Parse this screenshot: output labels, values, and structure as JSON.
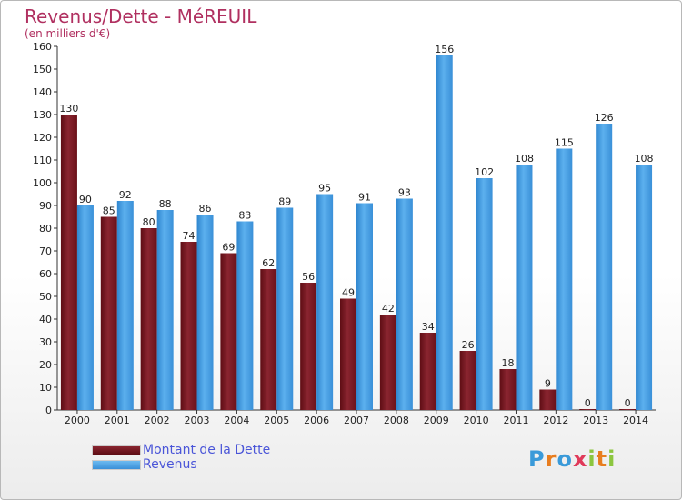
{
  "header": {
    "title": "Revenus/Dette - MéREUIL",
    "subtitle": "(en milliers d'€)"
  },
  "colors": {
    "debt": "#7a1a22",
    "revenue": "#4fa3e6",
    "title": "#b03060",
    "legend_text": "#4a55d8"
  },
  "legend": {
    "items": [
      {
        "label": "Montant de la Dette",
        "color": "#7a1a22"
      },
      {
        "label": "Revenus",
        "color": "#4fa3e6"
      }
    ]
  },
  "logo": {
    "letters": [
      "P",
      "r",
      "o",
      "x",
      "i",
      "t",
      "i"
    ],
    "colors": [
      "#3a9ad9",
      "#e87d1e",
      "#3a9ad9",
      "#e03a5a",
      "#8cc63f",
      "#e87d1e",
      "#8cc63f"
    ]
  },
  "chart_data": {
    "type": "bar",
    "title": "Revenus/Dette - MéREUIL",
    "subtitle": "(en milliers d'€)",
    "categories": [
      "2000",
      "2001",
      "2002",
      "2003",
      "2004",
      "2005",
      "2006",
      "2007",
      "2008",
      "2009",
      "2010",
      "2011",
      "2012",
      "2013",
      "2014"
    ],
    "series": [
      {
        "name": "Montant de la Dette",
        "values": [
          130,
          85,
          80,
          74,
          69,
          62,
          56,
          49,
          42,
          34,
          26,
          18,
          9,
          0,
          0
        ]
      },
      {
        "name": "Revenus",
        "values": [
          90,
          92,
          88,
          86,
          83,
          89,
          95,
          91,
          93,
          156,
          102,
          108,
          115,
          126,
          108
        ]
      }
    ],
    "ylim": [
      0,
      160
    ],
    "yticks": [
      0,
      10,
      20,
      30,
      40,
      50,
      60,
      70,
      80,
      90,
      100,
      110,
      120,
      130,
      140,
      150,
      160
    ],
    "grid": false,
    "legend_position": "bottom-left"
  }
}
